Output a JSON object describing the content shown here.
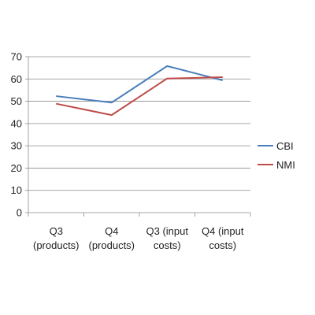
{
  "chart_data": {
    "type": "line",
    "title": "",
    "xlabel": "",
    "ylabel": "",
    "categories": [
      [
        "Q3",
        "(products)"
      ],
      [
        "Q4",
        "(products)"
      ],
      [
        "Q3 (input",
        "costs)"
      ],
      [
        "Q4 (input",
        "costs)"
      ]
    ],
    "y_ticks": [
      "0",
      "10",
      "20",
      "30",
      "40",
      "50",
      "60",
      "70"
    ],
    "ylim": [
      0,
      70
    ],
    "grid": true,
    "legend_position": "right",
    "series": [
      {
        "name": "CBI",
        "color": "#4a7ebb",
        "values": [
          52.3,
          49.4,
          65.8,
          59.4
        ]
      },
      {
        "name": "NMI",
        "color": "#be4b48",
        "values": [
          48.9,
          43.8,
          60.2,
          60.8
        ]
      }
    ]
  }
}
